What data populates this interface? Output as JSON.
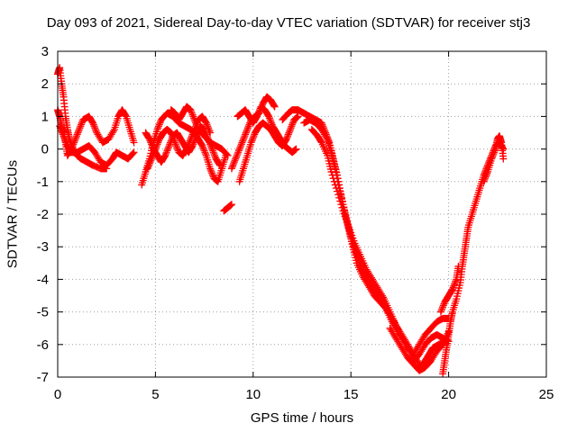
{
  "chart_data": {
    "type": "scatter",
    "title": "Day 093 of 2021, Sidereal Day-to-day VTEC variation (SDTVAR) for receiver stj3",
    "xlabel": "GPS time / hours",
    "ylabel": "SDTVAR / TECUs",
    "xlim": [
      0,
      25
    ],
    "ylim": [
      -7,
      3
    ],
    "xticks": [
      0,
      5,
      10,
      15,
      20,
      25
    ],
    "yticks": [
      -7,
      -6,
      -5,
      -4,
      -3,
      -2,
      -1,
      0,
      1,
      2,
      3
    ],
    "grid": true,
    "marker": "+",
    "series_color": "#ff0000",
    "traces": [
      [
        [
          0.0,
          2.3
        ],
        [
          0.1,
          2.5
        ],
        [
          0.2,
          2.0
        ],
        [
          0.3,
          1.6
        ],
        [
          0.4,
          1.0
        ],
        [
          0.5,
          0.6
        ],
        [
          0.6,
          0.3
        ],
        [
          0.8,
          0.0
        ],
        [
          1.0,
          -0.2
        ],
        [
          1.2,
          -0.3
        ],
        [
          1.5,
          -0.4
        ],
        [
          1.8,
          -0.5
        ],
        [
          2.2,
          -0.6
        ],
        [
          2.5,
          -0.6
        ]
      ],
      [
        [
          0.0,
          1.2
        ],
        [
          0.1,
          1.0
        ],
        [
          0.2,
          0.7
        ],
        [
          0.3,
          0.5
        ],
        [
          0.4,
          0.2
        ],
        [
          0.5,
          -0.2
        ],
        [
          0.7,
          0.0
        ],
        [
          0.9,
          0.3
        ],
        [
          1.1,
          0.6
        ],
        [
          1.3,
          0.9
        ],
        [
          1.6,
          1.0
        ],
        [
          1.8,
          0.8
        ],
        [
          2.0,
          0.5
        ],
        [
          2.3,
          0.2
        ],
        [
          2.6,
          0.3
        ],
        [
          2.9,
          0.6
        ],
        [
          3.1,
          1.0
        ],
        [
          3.3,
          1.2
        ],
        [
          3.5,
          1.0
        ],
        [
          3.7,
          0.6
        ],
        [
          3.9,
          0.2
        ]
      ],
      [
        [
          0.1,
          0.7
        ],
        [
          0.3,
          0.4
        ],
        [
          0.5,
          0.1
        ],
        [
          0.7,
          -0.1
        ],
        [
          1.0,
          -0.1
        ],
        [
          1.3,
          0.0
        ],
        [
          1.6,
          0.1
        ],
        [
          1.9,
          -0.1
        ],
        [
          2.2,
          -0.4
        ],
        [
          2.5,
          -0.5
        ],
        [
          2.8,
          -0.3
        ],
        [
          3.0,
          -0.1
        ],
        [
          3.3,
          -0.2
        ],
        [
          3.6,
          -0.3
        ],
        [
          3.9,
          -0.1
        ]
      ],
      [
        [
          4.3,
          -1.1
        ],
        [
          4.5,
          -0.7
        ],
        [
          4.7,
          -0.3
        ],
        [
          4.9,
          0.2
        ],
        [
          5.1,
          0.6
        ],
        [
          5.3,
          0.9
        ],
        [
          5.6,
          1.1
        ],
        [
          5.9,
          1.0
        ],
        [
          6.2,
          0.8
        ],
        [
          6.5,
          0.7
        ],
        [
          6.8,
          0.6
        ],
        [
          7.0,
          0.5
        ],
        [
          7.2,
          0.3
        ],
        [
          7.4,
          0.1
        ],
        [
          7.6,
          -0.2
        ],
        [
          7.8,
          -0.6
        ],
        [
          8.0,
          -0.9
        ],
        [
          8.2,
          -1.0
        ],
        [
          8.4,
          -0.6
        ],
        [
          8.6,
          -0.2
        ]
      ],
      [
        [
          4.5,
          0.5
        ],
        [
          4.7,
          0.3
        ],
        [
          4.9,
          0.0
        ],
        [
          5.1,
          -0.2
        ],
        [
          5.3,
          -0.4
        ],
        [
          5.5,
          -0.2
        ],
        [
          5.7,
          0.1
        ],
        [
          5.9,
          0.4
        ],
        [
          6.1,
          0.5
        ],
        [
          6.3,
          0.3
        ],
        [
          6.5,
          0.1
        ],
        [
          6.7,
          -0.1
        ],
        [
          6.9,
          0.1
        ],
        [
          7.1,
          0.4
        ],
        [
          7.3,
          0.7
        ],
        [
          7.5,
          0.6
        ],
        [
          7.7,
          0.3
        ],
        [
          7.9,
          0.0
        ],
        [
          8.1,
          -0.3
        ],
        [
          8.3,
          -0.5
        ]
      ],
      [
        [
          4.6,
          -0.6
        ],
        [
          4.8,
          -0.3
        ],
        [
          5.0,
          0.0
        ],
        [
          5.2,
          0.3
        ],
        [
          5.4,
          0.5
        ],
        [
          5.6,
          0.6
        ],
        [
          5.8,
          0.5
        ],
        [
          6.0,
          0.2
        ],
        [
          6.2,
          -0.1
        ],
        [
          6.4,
          -0.2
        ],
        [
          6.6,
          0.0
        ],
        [
          6.8,
          0.3
        ],
        [
          7.0,
          0.6
        ],
        [
          7.2,
          0.9
        ],
        [
          7.4,
          1.0
        ],
        [
          7.6,
          0.8
        ],
        [
          7.8,
          0.5
        ]
      ],
      [
        [
          5.8,
          1.2
        ],
        [
          6.0,
          1.1
        ],
        [
          6.2,
          0.9
        ],
        [
          6.4,
          1.1
        ],
        [
          6.6,
          1.3
        ],
        [
          6.8,
          1.2
        ],
        [
          7.0,
          0.9
        ],
        [
          7.2,
          0.6
        ],
        [
          7.5,
          0.4
        ],
        [
          7.8,
          0.2
        ],
        [
          8.1,
          0.1
        ],
        [
          8.4,
          0.0
        ],
        [
          8.7,
          -0.2
        ]
      ],
      [
        [
          8.5,
          -1.9
        ],
        [
          8.7,
          -1.8
        ],
        [
          8.9,
          -1.7
        ]
      ],
      [
        [
          8.9,
          -0.6
        ],
        [
          9.1,
          -0.3
        ],
        [
          9.3,
          0.0
        ],
        [
          9.5,
          0.3
        ],
        [
          9.7,
          0.6
        ],
        [
          9.9,
          0.9
        ],
        [
          10.1,
          1.0
        ],
        [
          10.3,
          1.1
        ],
        [
          10.5,
          1.4
        ],
        [
          10.7,
          1.6
        ],
        [
          10.9,
          1.5
        ],
        [
          11.1,
          1.3
        ]
      ],
      [
        [
          9.3,
          -1.0
        ],
        [
          9.5,
          -0.6
        ],
        [
          9.7,
          -0.2
        ],
        [
          9.9,
          0.2
        ],
        [
          10.1,
          0.5
        ],
        [
          10.3,
          0.7
        ],
        [
          10.5,
          0.8
        ],
        [
          10.7,
          0.7
        ],
        [
          10.9,
          0.6
        ],
        [
          11.1,
          0.4
        ],
        [
          11.3,
          0.2
        ],
        [
          11.5,
          0.1
        ],
        [
          11.7,
          0.3
        ],
        [
          11.9,
          0.6
        ],
        [
          12.1,
          0.9
        ],
        [
          12.3,
          1.0
        ]
      ],
      [
        [
          9.2,
          1.0
        ],
        [
          9.4,
          1.1
        ],
        [
          9.6,
          1.2
        ],
        [
          9.8,
          1.0
        ],
        [
          10.0,
          0.8
        ],
        [
          10.2,
          1.0
        ],
        [
          10.4,
          1.3
        ],
        [
          10.6,
          1.2
        ],
        [
          10.8,
          1.0
        ],
        [
          11.0,
          0.7
        ],
        [
          11.2,
          0.5
        ],
        [
          11.4,
          0.3
        ],
        [
          11.6,
          0.1
        ],
        [
          11.8,
          0.0
        ],
        [
          12.0,
          -0.1
        ],
        [
          12.2,
          0.0
        ]
      ],
      [
        [
          11.5,
          0.9
        ],
        [
          11.8,
          1.1
        ],
        [
          12.0,
          1.2
        ],
        [
          12.3,
          1.2
        ],
        [
          12.6,
          1.1
        ],
        [
          12.9,
          1.0
        ],
        [
          13.2,
          0.9
        ],
        [
          13.5,
          0.8
        ],
        [
          13.7,
          0.5
        ],
        [
          13.9,
          0.2
        ],
        [
          14.1,
          -0.3
        ],
        [
          14.3,
          -0.8
        ],
        [
          14.5,
          -1.4
        ],
        [
          14.7,
          -2.0
        ],
        [
          14.9,
          -2.5
        ],
        [
          15.1,
          -3.0
        ],
        [
          15.3,
          -3.5
        ],
        [
          15.6,
          -3.9
        ],
        [
          15.9,
          -4.2
        ],
        [
          16.2,
          -4.5
        ],
        [
          16.5,
          -4.7
        ],
        [
          16.8,
          -4.9
        ],
        [
          17.1,
          -5.2
        ],
        [
          17.4,
          -5.5
        ],
        [
          17.7,
          -5.8
        ],
        [
          18.0,
          -6.1
        ],
        [
          18.3,
          -6.4
        ],
        [
          18.6,
          -6.7
        ],
        [
          18.8,
          -6.5
        ],
        [
          19.0,
          -6.3
        ],
        [
          19.2,
          -6.1
        ],
        [
          19.5,
          -6.0
        ],
        [
          19.8,
          -5.9
        ]
      ],
      [
        [
          12.6,
          0.8
        ],
        [
          12.9,
          0.9
        ],
        [
          13.2,
          0.8
        ],
        [
          13.5,
          0.6
        ],
        [
          13.8,
          0.3
        ],
        [
          14.0,
          -0.1
        ],
        [
          14.2,
          -0.6
        ],
        [
          14.4,
          -1.2
        ],
        [
          14.6,
          -1.7
        ],
        [
          14.8,
          -2.2
        ],
        [
          15.0,
          -2.7
        ],
        [
          15.2,
          -3.1
        ],
        [
          15.4,
          -3.4
        ],
        [
          15.6,
          -3.7
        ],
        [
          15.9,
          -4.0
        ],
        [
          16.2,
          -4.3
        ],
        [
          16.5,
          -4.6
        ],
        [
          16.8,
          -4.9
        ],
        [
          17.1,
          -5.3
        ],
        [
          17.4,
          -5.6
        ],
        [
          17.7,
          -5.9
        ],
        [
          18.0,
          -6.2
        ],
        [
          18.2,
          -6.5
        ],
        [
          18.5,
          -6.3
        ],
        [
          18.8,
          -6.0
        ],
        [
          19.1,
          -5.8
        ],
        [
          19.4,
          -5.7
        ],
        [
          19.7,
          -5.8
        ],
        [
          20.0,
          -5.9
        ]
      ],
      [
        [
          13.0,
          0.6
        ],
        [
          13.3,
          0.4
        ],
        [
          13.5,
          0.2
        ],
        [
          13.8,
          -0.2
        ],
        [
          14.0,
          -0.7
        ],
        [
          14.3,
          -1.3
        ],
        [
          14.6,
          -1.9
        ],
        [
          14.9,
          -2.4
        ],
        [
          15.2,
          -2.9
        ],
        [
          15.5,
          -3.3
        ],
        [
          15.8,
          -3.7
        ],
        [
          16.1,
          -4.0
        ],
        [
          16.4,
          -4.3
        ],
        [
          16.7,
          -4.6
        ],
        [
          17.0,
          -5.0
        ],
        [
          17.3,
          -5.4
        ],
        [
          17.6,
          -5.8
        ],
        [
          17.9,
          -6.1
        ],
        [
          18.2,
          -6.3
        ],
        [
          18.5,
          -6.0
        ],
        [
          18.8,
          -5.7
        ],
        [
          19.1,
          -5.5
        ],
        [
          19.4,
          -5.3
        ],
        [
          19.7,
          -5.2
        ],
        [
          20.0,
          -5.2
        ]
      ],
      [
        [
          17.0,
          -5.5
        ],
        [
          17.3,
          -5.8
        ],
        [
          17.6,
          -6.1
        ],
        [
          17.9,
          -6.4
        ],
        [
          18.2,
          -6.6
        ],
        [
          18.5,
          -6.8
        ],
        [
          18.8,
          -6.7
        ],
        [
          19.1,
          -6.5
        ],
        [
          19.4,
          -6.2
        ],
        [
          19.7,
          -6.0
        ],
        [
          20.0,
          -5.6
        ]
      ],
      [
        [
          19.7,
          -6.9
        ],
        [
          19.8,
          -6.5
        ],
        [
          19.9,
          -6.1
        ],
        [
          20.0,
          -5.7
        ],
        [
          20.1,
          -5.3
        ],
        [
          20.2,
          -5.0
        ],
        [
          20.4,
          -4.6
        ],
        [
          20.6,
          -4.1
        ],
        [
          20.7,
          -3.6
        ],
        [
          20.8,
          -3.2
        ],
        [
          20.9,
          -2.8
        ],
        [
          21.0,
          -2.4
        ],
        [
          21.2,
          -2.0
        ],
        [
          21.4,
          -1.6
        ],
        [
          21.6,
          -1.2
        ],
        [
          21.8,
          -0.8
        ],
        [
          22.0,
          -0.5
        ],
        [
          22.2,
          -0.2
        ],
        [
          22.4,
          0.1
        ],
        [
          22.6,
          0.2
        ],
        [
          22.8,
          0.0
        ]
      ],
      [
        [
          19.6,
          -5.0
        ],
        [
          19.8,
          -4.7
        ],
        [
          20.0,
          -4.5
        ],
        [
          20.2,
          -4.3
        ],
        [
          20.4,
          -4.0
        ],
        [
          20.5,
          -3.6
        ]
      ],
      [
        [
          21.8,
          -1.0
        ],
        [
          22.0,
          -0.7
        ],
        [
          22.2,
          -0.3
        ],
        [
          22.4,
          0.0
        ],
        [
          22.5,
          0.3
        ],
        [
          22.6,
          0.4
        ],
        [
          22.7,
          0.2
        ],
        [
          22.8,
          -0.3
        ]
      ]
    ]
  }
}
